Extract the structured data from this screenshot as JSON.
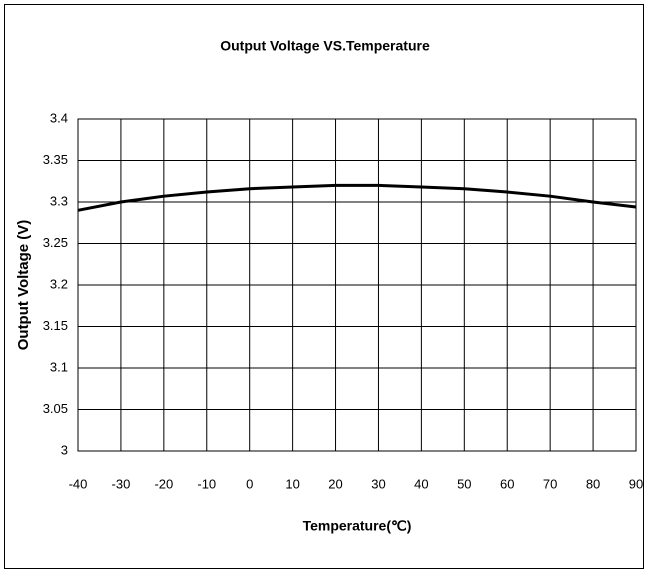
{
  "chart_data": {
    "type": "line",
    "title": "Output Voltage VS.Temperature",
    "x_label": "Temperature(℃)",
    "y_label": "Output Voltage (V)",
    "x": [
      -40,
      -30,
      -20,
      -10,
      0,
      10,
      20,
      30,
      40,
      50,
      60,
      70,
      80,
      90
    ],
    "values": [
      3.29,
      3.3,
      3.307,
      3.312,
      3.316,
      3.318,
      3.32,
      3.32,
      3.318,
      3.316,
      3.312,
      3.307,
      3.3,
      3.294
    ],
    "color": "#000000",
    "xlim": [
      -40,
      90
    ],
    "xticks": [
      -40,
      -30,
      -20,
      -10,
      0,
      10,
      20,
      30,
      40,
      50,
      60,
      70,
      80,
      90
    ],
    "ylim": [
      3,
      3.4
    ],
    "yticks": [
      3,
      3.05,
      3.1,
      3.15,
      3.2,
      3.25,
      3.3,
      3.35,
      3.4
    ],
    "grid": true
  }
}
